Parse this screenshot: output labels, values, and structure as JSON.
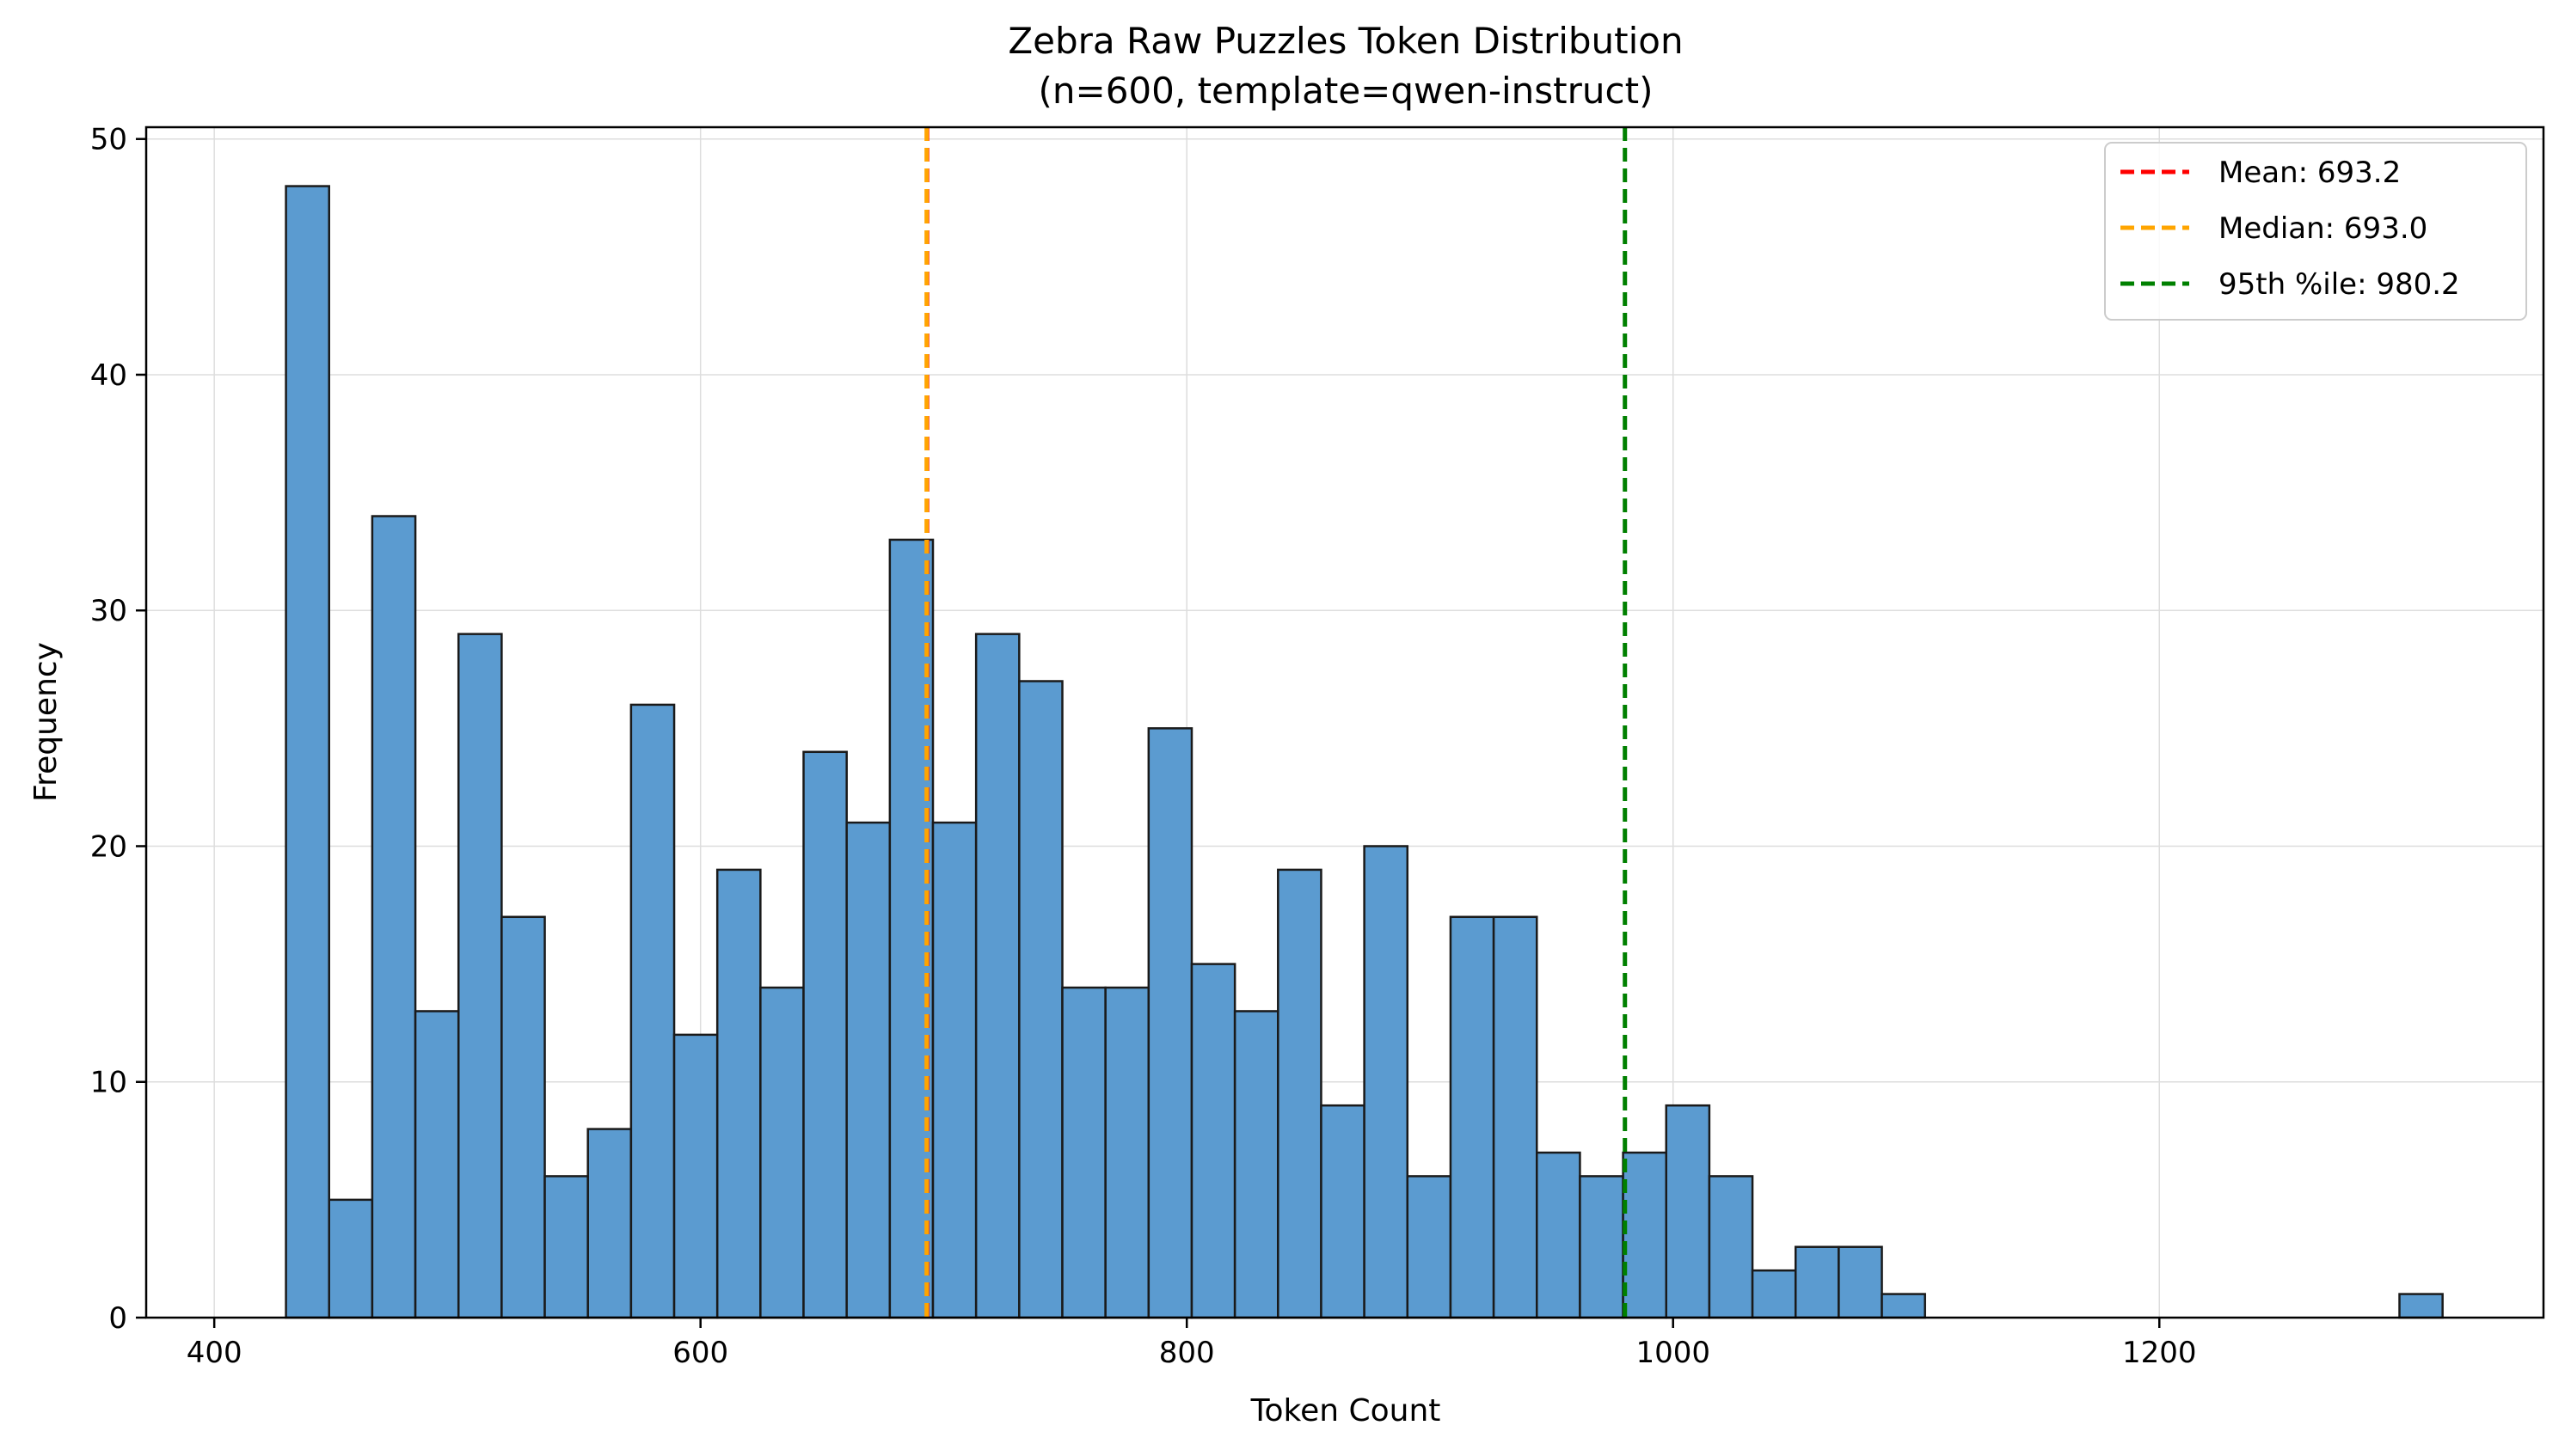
{
  "chart_data": {
    "type": "histogram",
    "title": "Zebra Raw Puzzles Token Distribution",
    "subtitle": "(n=600, template=qwen-instruct)",
    "xlabel": "Token Count",
    "ylabel": "Frequency",
    "xlim": [
      372,
      1358
    ],
    "ylim": [
      0,
      50.5
    ],
    "x_ticks": [
      400,
      600,
      800,
      1000,
      1200
    ],
    "y_ticks": [
      0,
      10,
      20,
      30,
      40,
      50
    ],
    "grid": true,
    "bar_color": "#5b9bd0",
    "bar_edge_color": "#1a1a1a",
    "bin_start": 429.5,
    "bin_width": 17.74,
    "counts": [
      48,
      5,
      34,
      13,
      29,
      17,
      6,
      8,
      26,
      12,
      19,
      14,
      24,
      21,
      33,
      21,
      29,
      27,
      14,
      14,
      25,
      15,
      13,
      19,
      9,
      20,
      6,
      17,
      17,
      7,
      6,
      7,
      9,
      6,
      2,
      3,
      3,
      1,
      0,
      0,
      0,
      0,
      0,
      0,
      0,
      0,
      0,
      0,
      0,
      1
    ],
    "lines": [
      {
        "name": "Mean: 693.2",
        "x": 693.2,
        "color": "#ff0000"
      },
      {
        "name": "Median: 693.0",
        "x": 693.0,
        "color": "#ffa500"
      },
      {
        "name": "95th %ile: 980.2",
        "x": 980.2,
        "color": "#008000"
      }
    ],
    "legend_position": "top-right"
  }
}
